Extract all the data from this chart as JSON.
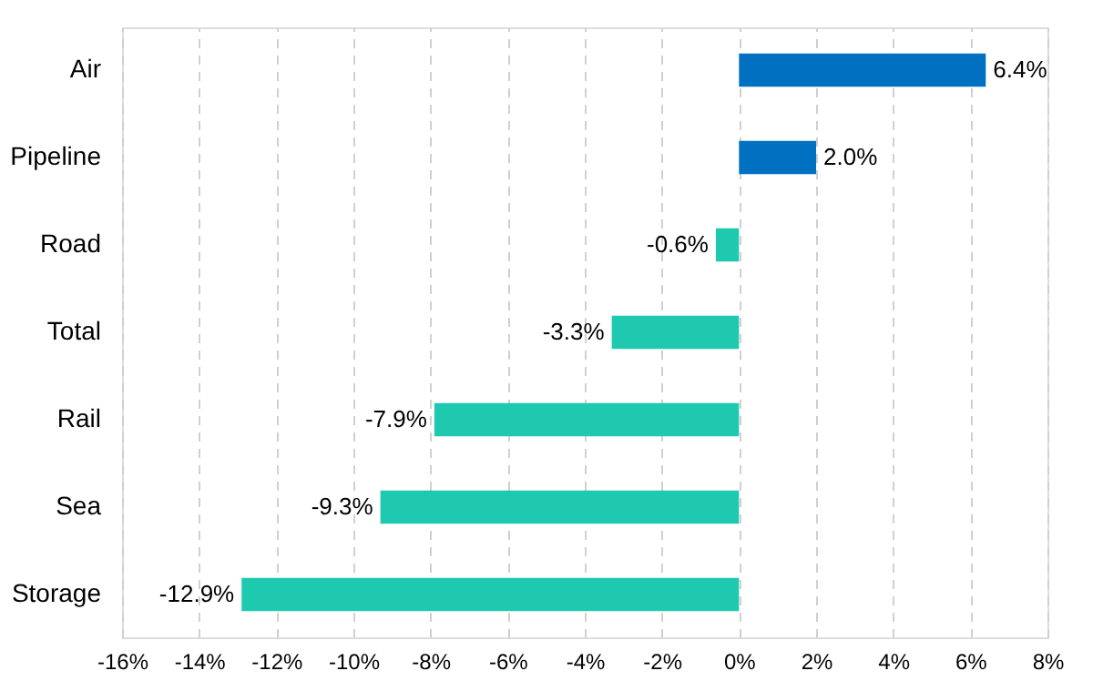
{
  "chart_data": {
    "type": "bar",
    "orientation": "horizontal",
    "categories": [
      "Air",
      "Pipeline",
      "Road",
      "Total",
      "Rail",
      "Sea",
      "Storage"
    ],
    "values": [
      6.4,
      2.0,
      -0.6,
      -3.3,
      -7.9,
      -9.3,
      -12.9
    ],
    "colors": [
      "#0070c0",
      "#0070c0",
      "#1fc9b0",
      "#1fc9b0",
      "#1fc9b0",
      "#1fc9b0",
      "#1fc9b0"
    ],
    "value_labels": [
      "6.4%",
      "2.0%",
      "-0.6%",
      "-3.3%",
      "-7.9%",
      "-9.3%",
      "-12.9%"
    ],
    "xlim": [
      -16,
      8
    ],
    "xticks": [
      {
        "value": -16,
        "label": "-16%"
      },
      {
        "value": -14,
        "label": "-14%"
      },
      {
        "value": -12,
        "label": "-12%"
      },
      {
        "value": -10,
        "label": "-10%"
      },
      {
        "value": -8,
        "label": "-8%"
      },
      {
        "value": -6,
        "label": "-6%"
      },
      {
        "value": -4,
        "label": "-4%"
      },
      {
        "value": -2,
        "label": "-2%"
      },
      {
        "value": 0,
        "label": "0%"
      },
      {
        "value": 2,
        "label": "2%"
      },
      {
        "value": 4,
        "label": "4%"
      },
      {
        "value": 6,
        "label": "6%"
      },
      {
        "value": 8,
        "label": "8%"
      }
    ],
    "grid": "x"
  }
}
